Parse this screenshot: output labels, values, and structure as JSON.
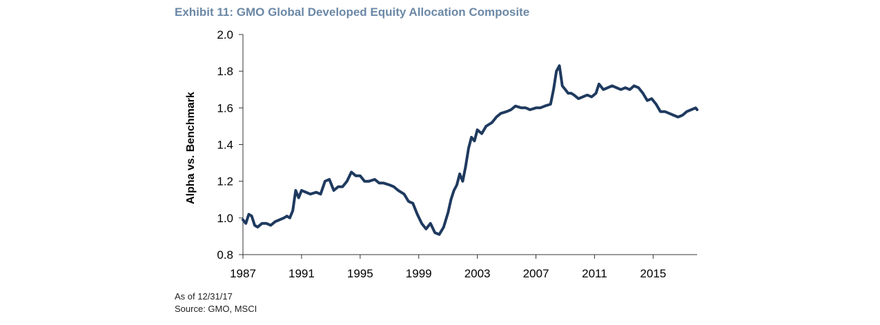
{
  "notes": {
    "as_of": "As of 12/31/17",
    "source": "Source: GMO, MSCI"
  },
  "colors": {
    "line": "#1f3a5f",
    "axis": "#333333",
    "title": "#6b88a6"
  },
  "chart_data": {
    "type": "line",
    "title": "Exhibit 11: GMO Global Developed Equity Allocation Composite",
    "xlabel": "",
    "ylabel": "Alpha vs. Benchmark",
    "xlim": [
      1987,
      2018
    ],
    "ylim": [
      0.8,
      2.0
    ],
    "x_ticks": [
      1987,
      1991,
      1995,
      1999,
      2003,
      2007,
      2011,
      2015
    ],
    "y_ticks": [
      0.8,
      1.0,
      1.2,
      1.4,
      1.6,
      1.8,
      2.0
    ],
    "y_tick_labels": [
      "0.8",
      "1.0",
      "1.2",
      "1.4",
      "1.6",
      "1.8",
      "2.0"
    ],
    "grid": false,
    "series": [
      {
        "name": "",
        "x": [
          1987.0,
          1987.2,
          1987.4,
          1987.6,
          1987.8,
          1988.0,
          1988.3,
          1988.6,
          1988.9,
          1989.2,
          1989.5,
          1989.8,
          1990.0,
          1990.2,
          1990.4,
          1990.6,
          1990.8,
          1991.0,
          1991.3,
          1991.6,
          1992.0,
          1992.3,
          1992.6,
          1992.9,
          1993.2,
          1993.5,
          1993.8,
          1994.1,
          1994.4,
          1994.7,
          1995.0,
          1995.3,
          1995.6,
          1996.0,
          1996.3,
          1996.6,
          1997.0,
          1997.3,
          1997.6,
          1998.0,
          1998.3,
          1998.6,
          1998.9,
          1999.2,
          1999.5,
          1999.8,
          2000.1,
          2000.4,
          2000.7,
          2001.0,
          2001.2,
          2001.4,
          2001.6,
          2001.8,
          2002.0,
          2002.2,
          2002.4,
          2002.6,
          2002.8,
          2003.0,
          2003.3,
          2003.6,
          2004.0,
          2004.3,
          2004.6,
          2005.0,
          2005.3,
          2005.6,
          2006.0,
          2006.3,
          2006.6,
          2007.0,
          2007.3,
          2007.6,
          2008.0,
          2008.2,
          2008.4,
          2008.6,
          2008.8,
          2009.0,
          2009.2,
          2009.4,
          2009.6,
          2009.9,
          2010.2,
          2010.5,
          2010.8,
          2011.1,
          2011.3,
          2011.6,
          2011.9,
          2012.2,
          2012.5,
          2012.8,
          2013.1,
          2013.4,
          2013.7,
          2014.0,
          2014.3,
          2014.6,
          2014.9,
          2015.2,
          2015.5,
          2015.8,
          2016.1,
          2016.4,
          2016.7,
          2017.0,
          2017.3,
          2017.6,
          2017.9,
          2018.0
        ],
        "y": [
          0.99,
          0.97,
          1.02,
          1.01,
          0.96,
          0.95,
          0.97,
          0.97,
          0.96,
          0.98,
          0.99,
          1.0,
          1.01,
          1.0,
          1.04,
          1.15,
          1.11,
          1.15,
          1.14,
          1.13,
          1.14,
          1.13,
          1.2,
          1.21,
          1.15,
          1.17,
          1.17,
          1.2,
          1.25,
          1.23,
          1.23,
          1.2,
          1.2,
          1.21,
          1.19,
          1.19,
          1.18,
          1.17,
          1.15,
          1.13,
          1.09,
          1.08,
          1.02,
          0.97,
          0.94,
          0.97,
          0.92,
          0.91,
          0.95,
          1.03,
          1.1,
          1.15,
          1.18,
          1.24,
          1.2,
          1.28,
          1.38,
          1.44,
          1.42,
          1.48,
          1.46,
          1.5,
          1.52,
          1.55,
          1.57,
          1.58,
          1.59,
          1.61,
          1.6,
          1.6,
          1.59,
          1.6,
          1.6,
          1.61,
          1.62,
          1.7,
          1.8,
          1.83,
          1.72,
          1.7,
          1.68,
          1.68,
          1.67,
          1.65,
          1.66,
          1.67,
          1.66,
          1.68,
          1.73,
          1.7,
          1.71,
          1.72,
          1.71,
          1.7,
          1.71,
          1.7,
          1.72,
          1.71,
          1.68,
          1.64,
          1.65,
          1.62,
          1.58,
          1.58,
          1.57,
          1.56,
          1.55,
          1.56,
          1.58,
          1.59,
          1.6,
          1.59
        ]
      }
    ]
  }
}
